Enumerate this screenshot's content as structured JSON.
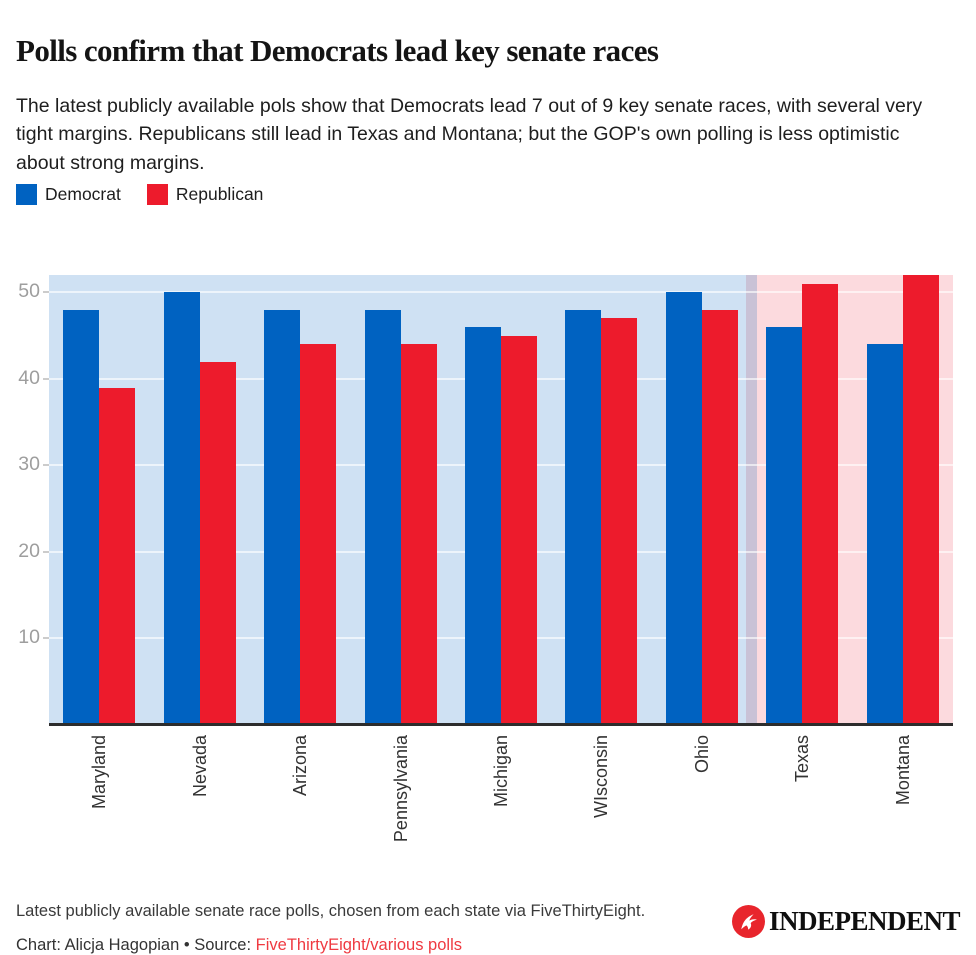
{
  "header": {
    "title": "Polls confirm that Democrats lead key senate races",
    "subtitle": "The latest publicly available pols show that Democrats lead 7 out of 9 key senate races, with several very tight margins. Republicans still lead in Texas and Montana; but the GOP's own polling is less optimistic about strong margins."
  },
  "legend": [
    {
      "label": "Democrat",
      "color": "#0062c1"
    },
    {
      "label": "Republican",
      "color": "#ed1b2c"
    }
  ],
  "chart_data": {
    "type": "bar",
    "categories": [
      "Maryland",
      "Nevada",
      "Arizona",
      "Pennsylvania",
      "Michigan",
      "WIsconsin",
      "Ohio",
      "Texas",
      "Montana"
    ],
    "series": [
      {
        "name": "Democrat",
        "color": "#0062c1",
        "values": [
          48,
          50,
          48,
          48,
          46,
          48,
          50,
          46,
          44
        ]
      },
      {
        "name": "Republican",
        "color": "#ed1b2c",
        "values": [
          39,
          42,
          44,
          44,
          45,
          47,
          48,
          51,
          52
        ]
      }
    ],
    "y_ticks": [
      10,
      20,
      30,
      40,
      50
    ],
    "ylim": [
      0,
      52
    ],
    "grid": "horizontal",
    "legend_position": "top-left",
    "background_zones": {
      "democrat_zone_color": "#cfe1f3",
      "republican_zone_color": "#fcdade",
      "divider_color": "#c9c2d6",
      "republican_zone_start_index": 7
    }
  },
  "footer": {
    "note": "Latest publicly available senate race polls, chosen from each state via FiveThirtyEight.",
    "credit": "Chart: Alicja Hagopian • Source: ",
    "source_link": "FiveThirtyEight/various polls",
    "logo_text": "INDEPENDENT",
    "logo_icon": "independent-eagle-icon",
    "logo_color": "#e8252c"
  }
}
